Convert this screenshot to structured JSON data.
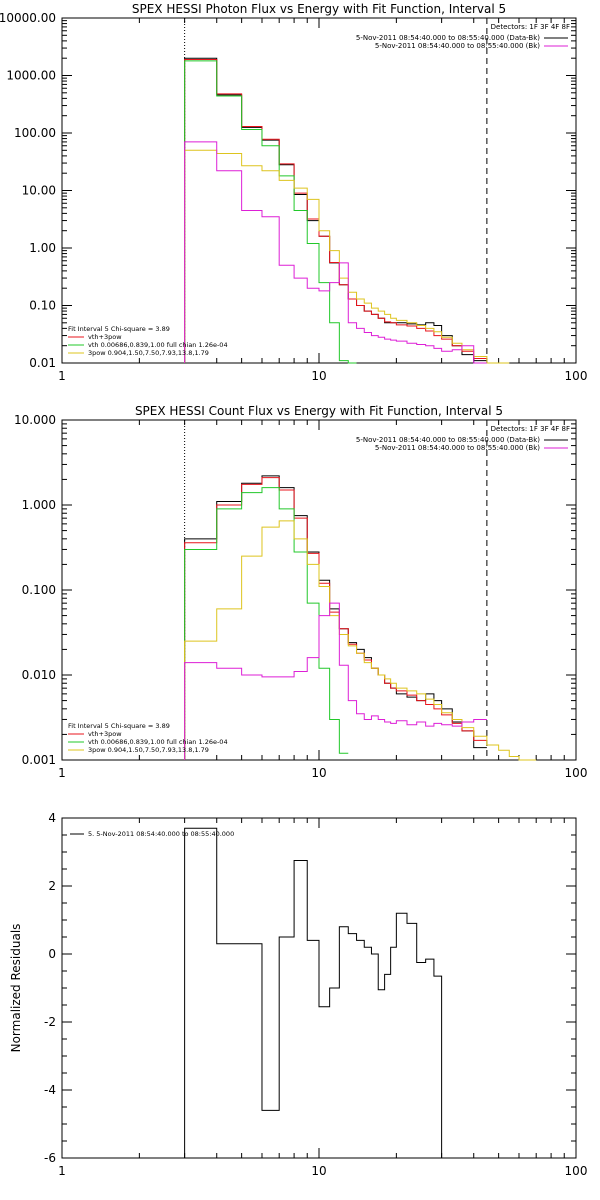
{
  "colors": {
    "black": "#000000",
    "red": "#e8141c",
    "green": "#22c82a",
    "yellow": "#ddc41e",
    "magenta": "#dd1fd6",
    "orange": "#f0a000"
  },
  "chart_data": [
    {
      "type": "line",
      "title": "SPEX HESSI Photon Flux vs Energy with Fit Function, Interval 5",
      "x_scale": "log",
      "y_scale": "log",
      "xlim": [
        1,
        100
      ],
      "ylim": [
        0.01,
        10000
      ],
      "x_ticks": [
        {
          "value": 1,
          "label": "1"
        },
        {
          "value": 10,
          "label": "10"
        },
        {
          "value": 100,
          "label": "100"
        }
      ],
      "y_ticks": [
        {
          "value": 10000,
          "label": "10000.00"
        },
        {
          "value": 1000,
          "label": "1000.00"
        },
        {
          "value": 100,
          "label": "100.00"
        },
        {
          "value": 10,
          "label": "10.00"
        },
        {
          "value": 1,
          "label": "1.00"
        },
        {
          "value": 0.1,
          "label": "0.10"
        },
        {
          "value": 0.01,
          "label": "0.01"
        }
      ],
      "bin_edges": [
        3,
        4,
        5,
        6,
        7,
        8,
        9,
        10,
        11,
        12,
        13,
        14,
        15,
        16,
        17,
        18,
        19,
        20,
        22,
        24,
        26,
        28,
        30,
        33,
        36,
        40,
        45,
        50,
        55,
        60,
        70,
        80
      ],
      "info": {
        "detectors": "Detectors: 1F 3F 4F 8F",
        "lines": [
          {
            "text": "5-Nov-2011 08:54:40.000 to 08:55:40.000 (Data-Bk)",
            "color": "black"
          },
          {
            "text": "5-Nov-2011 08:54:40.000 to 08:55:40.000 (Bk)",
            "color": "magenta"
          }
        ]
      },
      "fit_legend": {
        "title": "Fit Interval 5   Chi-square = 3.89",
        "entries": [
          {
            "text": "vth+3pow",
            "color": "red"
          },
          {
            "text": "vth 0.00686,0.839,1.00  full chian 1.26e-04",
            "color": "green"
          },
          {
            "text": "3pow 0.904,1.50,7.50,7.93,13.8,1.79",
            "color": "yellow"
          }
        ]
      },
      "vlines": [
        {
          "x": 3,
          "style": "dotted"
        },
        {
          "x": 45,
          "style": "dashed"
        }
      ],
      "series": [
        {
          "color": "black",
          "values": [
            2000,
            460,
            125,
            75,
            28,
            8.5,
            3.0,
            1.6,
            0.55,
            0.23,
            0.13,
            0.1,
            0.08,
            0.07,
            0.06,
            0.05,
            0.05,
            0.05,
            0.048,
            0.046,
            0.05,
            0.045,
            0.03,
            0.02,
            0.014,
            0.011
          ]
        },
        {
          "color": "red",
          "values": [
            1900,
            480,
            130,
            78,
            29,
            9.0,
            3.2,
            1.6,
            0.56,
            0.23,
            0.13,
            0.1,
            0.08,
            0.07,
            0.06,
            0.052,
            0.05,
            0.046,
            0.044,
            0.04,
            0.036,
            0.03,
            0.026,
            0.02,
            0.016,
            0.012
          ]
        },
        {
          "color": "green",
          "values": [
            1800,
            440,
            115,
            60,
            18,
            4.5,
            1.2,
            0.25,
            0.05,
            0.011,
            0.008
          ]
        },
        {
          "color": "yellow",
          "values": [
            50,
            44,
            27,
            22,
            15,
            11,
            7.0,
            2.0,
            0.9,
            0.3,
            0.17,
            0.13,
            0.11,
            0.09,
            0.08,
            0.07,
            0.06,
            0.055,
            0.05,
            0.045,
            0.04,
            0.035,
            0.028,
            0.022,
            0.017,
            0.013,
            0.01,
            0.008
          ]
        },
        {
          "color": "magenta",
          "values": [
            70,
            22,
            4.5,
            3.5,
            0.5,
            0.3,
            0.2,
            0.18,
            0.25,
            0.55,
            0.05,
            0.04,
            0.034,
            0.03,
            0.028,
            0.026,
            0.025,
            0.024,
            0.022,
            0.021,
            0.02,
            0.018,
            0.016,
            0.017,
            0.02,
            0.009
          ]
        }
      ]
    },
    {
      "type": "line",
      "title": "SPEX HESSI Count Flux vs Energy with Fit Function, Interval 5",
      "x_scale": "log",
      "y_scale": "log",
      "xlim": [
        1,
        100
      ],
      "ylim": [
        0.001,
        10
      ],
      "x_ticks": [
        {
          "value": 1,
          "label": "1"
        },
        {
          "value": 10,
          "label": "10"
        },
        {
          "value": 100,
          "label": "100"
        }
      ],
      "y_ticks": [
        {
          "value": 10,
          "label": "10.000"
        },
        {
          "value": 1,
          "label": "1.000"
        },
        {
          "value": 0.1,
          "label": "0.100"
        },
        {
          "value": 0.01,
          "label": "0.010"
        },
        {
          "value": 0.001,
          "label": "0.001"
        }
      ],
      "bin_edges": [
        3,
        4,
        5,
        6,
        7,
        8,
        9,
        10,
        11,
        12,
        13,
        14,
        15,
        16,
        17,
        18,
        19,
        20,
        22,
        24,
        26,
        28,
        30,
        33,
        36,
        40,
        45,
        50,
        55,
        60,
        70,
        80
      ],
      "info": {
        "detectors": "Detectors: 1F 3F 4F 8F",
        "lines": [
          {
            "text": "5-Nov-2011 08:54:40.000 to 08:55:40.000 (Data-Bk)",
            "color": "black"
          },
          {
            "text": "5-Nov-2011 08:54:40.000 to 08:55:40.000 (Bk)",
            "color": "magenta"
          }
        ]
      },
      "fit_legend": {
        "title": "Fit Interval 5   Chi-square = 3.89",
        "entries": [
          {
            "text": "vth+3pow",
            "color": "red"
          },
          {
            "text": "vth 0.00686,0.839,1.00  full chian 1.26e-04",
            "color": "green"
          },
          {
            "text": "3pow 0.904,1.50,7.50,7.93,13.8,1.79",
            "color": "yellow"
          }
        ]
      },
      "vlines": [
        {
          "x": 3,
          "style": "dotted"
        },
        {
          "x": 45,
          "style": "dashed"
        }
      ],
      "series": [
        {
          "color": "black",
          "values": [
            0.4,
            1.1,
            1.8,
            2.2,
            1.6,
            0.75,
            0.28,
            0.13,
            0.06,
            0.035,
            0.024,
            0.02,
            0.016,
            0.012,
            0.01,
            0.008,
            0.007,
            0.006,
            0.0055,
            0.005,
            0.006,
            0.005,
            0.004,
            0.0028,
            0.0022,
            0.0014
          ]
        },
        {
          "color": "red",
          "values": [
            0.36,
            1.0,
            1.75,
            2.1,
            1.5,
            0.7,
            0.27,
            0.12,
            0.055,
            0.035,
            0.023,
            0.018,
            0.015,
            0.012,
            0.01,
            0.008,
            0.007,
            0.0065,
            0.0058,
            0.005,
            0.0045,
            0.004,
            0.0034,
            0.0027,
            0.0022,
            0.0017
          ]
        },
        {
          "color": "green",
          "values": [
            0.3,
            0.9,
            1.4,
            1.6,
            0.9,
            0.28,
            0.07,
            0.012,
            0.003,
            0.0012
          ]
        },
        {
          "color": "yellow",
          "values": [
            0.025,
            0.06,
            0.25,
            0.55,
            0.65,
            0.4,
            0.2,
            0.11,
            0.05,
            0.03,
            0.022,
            0.018,
            0.014,
            0.012,
            0.01,
            0.009,
            0.008,
            0.007,
            0.0065,
            0.006,
            0.0052,
            0.0045,
            0.0036,
            0.003,
            0.0024,
            0.0019,
            0.0015,
            0.0013,
            0.0011,
            0.001
          ]
        },
        {
          "color": "magenta",
          "values": [
            0.014,
            0.012,
            0.01,
            0.0095,
            0.0095,
            0.011,
            0.016,
            0.05,
            0.07,
            0.013,
            0.005,
            0.0035,
            0.003,
            0.0033,
            0.003,
            0.0028,
            0.0027,
            0.0029,
            0.0026,
            0.0028,
            0.0025,
            0.0027,
            0.0026,
            0.0025,
            0.0028,
            0.003
          ]
        }
      ]
    },
    {
      "type": "line",
      "title": "",
      "x_scale": "log",
      "y_scale": "linear",
      "xlim": [
        1,
        100
      ],
      "ylim": [
        -6,
        4
      ],
      "ylabel": "Normalized Residuals",
      "x_ticks": [
        {
          "value": 1,
          "label": "1"
        },
        {
          "value": 10,
          "label": "10"
        },
        {
          "value": 100,
          "label": "100"
        }
      ],
      "y_ticks": [
        {
          "value": 4,
          "label": "4"
        },
        {
          "value": 2,
          "label": "2"
        },
        {
          "value": 0,
          "label": "0"
        },
        {
          "value": -2,
          "label": "-2"
        },
        {
          "value": -4,
          "label": "-4"
        },
        {
          "value": -6,
          "label": "-6"
        }
      ],
      "legend": [
        {
          "text": "5.  5-Nov-2011 08:54:40.000 to 08:55:40.000",
          "color": "black"
        }
      ],
      "bin_edges": [
        3,
        4,
        5,
        6,
        7,
        8,
        9,
        10,
        11,
        12,
        13,
        14,
        15,
        16,
        17,
        18,
        19,
        20,
        22,
        24,
        26,
        28,
        30,
        33,
        36,
        40,
        45
      ],
      "series": [
        {
          "color": "black",
          "values": [
            3.7,
            0.3,
            0.3,
            -4.6,
            0.5,
            2.75,
            0.4,
            -1.55,
            -1.0,
            0.8,
            0.6,
            0.4,
            0.2,
            0.0,
            -1.05,
            -0.6,
            0.2,
            1.2,
            0.9,
            -0.25,
            -0.15,
            -0.65
          ]
        }
      ]
    }
  ]
}
